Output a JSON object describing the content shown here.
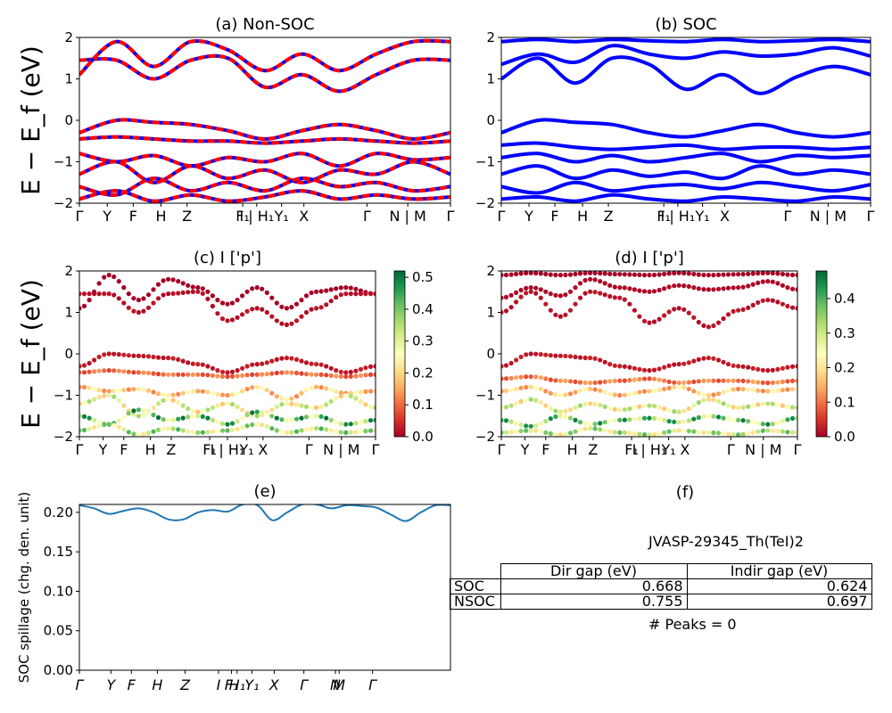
{
  "ylabel": "E − E_f (eV)",
  "colors": {
    "nonsoc_a": "#ff0000",
    "nonsoc_b": "#0000ff",
    "soc": "#0000ff",
    "spillage": "#1f77b4"
  },
  "chart_data": [
    {
      "id": "a",
      "type": "line",
      "title": "(a) Non-SOC",
      "ylim": [
        -2,
        2
      ],
      "yticks": [
        -2,
        -1,
        0,
        1,
        2
      ],
      "xticks": [
        "Γ",
        "Y",
        "F",
        "H",
        "Z",
        "F₁",
        "I | H₁",
        "Y₁",
        "X",
        "Γ",
        "N | M",
        "Γ"
      ],
      "band_style": "red/blue dashed, thick",
      "bands": [
        {
          "x": [
            0,
            0.1,
            0.2,
            0.3,
            0.4,
            0.5,
            0.6,
            0.7,
            0.8,
            0.9,
            1
          ],
          "y": [
            1.45,
            1.45,
            1.0,
            1.45,
            1.5,
            0.8,
            1.1,
            0.7,
            1.1,
            1.45,
            1.45
          ]
        },
        {
          "x": [
            0,
            0.1,
            0.2,
            0.3,
            0.4,
            0.5,
            0.6,
            0.7,
            0.8,
            0.9,
            1
          ],
          "y": [
            1.1,
            1.9,
            1.3,
            1.9,
            1.7,
            1.2,
            1.6,
            1.2,
            1.6,
            1.9,
            1.9
          ]
        },
        {
          "x": [
            0,
            0.1,
            0.2,
            0.3,
            0.4,
            0.5,
            0.6,
            0.7,
            0.8,
            0.9,
            1
          ],
          "y": [
            -0.3,
            0.0,
            -0.05,
            -0.1,
            -0.25,
            -0.45,
            -0.25,
            -0.1,
            -0.25,
            -0.45,
            -0.3
          ]
        },
        {
          "x": [
            0,
            0.1,
            0.2,
            0.3,
            0.4,
            0.5,
            0.6,
            0.7,
            0.8,
            0.9,
            1
          ],
          "y": [
            -0.45,
            -0.4,
            -0.45,
            -0.5,
            -0.5,
            -0.55,
            -0.5,
            -0.45,
            -0.5,
            -0.55,
            -0.5
          ]
        },
        {
          "x": [
            0,
            0.1,
            0.2,
            0.3,
            0.4,
            0.5,
            0.6,
            0.7,
            0.8,
            0.9,
            1
          ],
          "y": [
            -0.8,
            -1.0,
            -0.85,
            -1.1,
            -0.9,
            -1.0,
            -0.8,
            -1.1,
            -0.8,
            -0.95,
            -0.9
          ]
        },
        {
          "x": [
            0,
            0.1,
            0.2,
            0.3,
            0.4,
            0.5,
            0.6,
            0.7,
            0.8,
            0.9,
            1
          ],
          "y": [
            -1.3,
            -1.0,
            -1.5,
            -1.1,
            -1.4,
            -1.2,
            -1.5,
            -1.2,
            -1.3,
            -1.0,
            -1.3
          ]
        },
        {
          "x": [
            0,
            0.1,
            0.2,
            0.3,
            0.4,
            0.5,
            0.6,
            0.7,
            0.8,
            0.9,
            1
          ],
          "y": [
            -1.6,
            -1.8,
            -1.4,
            -1.7,
            -1.5,
            -1.7,
            -1.4,
            -1.6,
            -1.5,
            -1.7,
            -1.6
          ]
        },
        {
          "x": [
            0,
            0.1,
            0.2,
            0.3,
            0.4,
            0.5,
            0.6,
            0.7,
            0.8,
            0.9,
            1
          ],
          "y": [
            -1.9,
            -1.7,
            -1.95,
            -1.8,
            -1.95,
            -1.85,
            -1.7,
            -1.9,
            -1.8,
            -1.9,
            -1.85
          ]
        }
      ]
    },
    {
      "id": "b",
      "type": "line",
      "title": "(b) SOC",
      "ylim": [
        -2,
        2
      ],
      "yticks": [
        -2,
        -1,
        0,
        1,
        2
      ],
      "xticks": [
        "Γ",
        "Y",
        "F",
        "H",
        "Z",
        "F₁",
        "I | H₁",
        "Y₁",
        "X",
        "Γ",
        "N | M",
        "Γ"
      ],
      "band_style": "solid blue, thick",
      "bands": [
        {
          "x": [
            0,
            0.1,
            0.2,
            0.3,
            0.4,
            0.5,
            0.6,
            0.7,
            0.8,
            0.9,
            1
          ],
          "y": [
            1.9,
            1.95,
            1.9,
            1.95,
            1.92,
            1.9,
            1.95,
            1.9,
            1.92,
            1.95,
            1.9
          ]
        },
        {
          "x": [
            0,
            0.1,
            0.2,
            0.3,
            0.4,
            0.5,
            0.6,
            0.7,
            0.8,
            0.9,
            1
          ],
          "y": [
            1.35,
            1.6,
            1.4,
            1.8,
            1.6,
            1.5,
            1.65,
            1.55,
            1.6,
            1.75,
            1.55
          ]
        },
        {
          "x": [
            0,
            0.1,
            0.2,
            0.3,
            0.4,
            0.5,
            0.6,
            0.7,
            0.8,
            0.9,
            1
          ],
          "y": [
            1.0,
            1.5,
            0.9,
            1.5,
            1.35,
            0.75,
            1.1,
            0.65,
            1.05,
            1.3,
            1.1
          ]
        },
        {
          "x": [
            0,
            0.1,
            0.2,
            0.3,
            0.4,
            0.5,
            0.6,
            0.7,
            0.8,
            0.9,
            1
          ],
          "y": [
            -0.3,
            0.0,
            -0.05,
            -0.1,
            -0.3,
            -0.4,
            -0.25,
            -0.1,
            -0.3,
            -0.4,
            -0.3
          ]
        },
        {
          "x": [
            0,
            0.1,
            0.2,
            0.3,
            0.4,
            0.5,
            0.6,
            0.7,
            0.8,
            0.9,
            1
          ],
          "y": [
            -0.6,
            -0.55,
            -0.65,
            -0.7,
            -0.65,
            -0.6,
            -0.7,
            -0.65,
            -0.65,
            -0.7,
            -0.65
          ]
        },
        {
          "x": [
            0,
            0.1,
            0.2,
            0.3,
            0.4,
            0.5,
            0.6,
            0.7,
            0.8,
            0.9,
            1
          ],
          "y": [
            -0.9,
            -0.8,
            -1.0,
            -0.85,
            -1.0,
            -0.9,
            -0.8,
            -1.0,
            -0.85,
            -0.9,
            -0.85
          ]
        },
        {
          "x": [
            0,
            0.1,
            0.2,
            0.3,
            0.4,
            0.5,
            0.6,
            0.7,
            0.8,
            0.9,
            1
          ],
          "y": [
            -1.3,
            -1.1,
            -1.4,
            -1.2,
            -1.35,
            -1.25,
            -1.4,
            -1.1,
            -1.3,
            -1.2,
            -1.3
          ]
        },
        {
          "x": [
            0,
            0.1,
            0.2,
            0.3,
            0.4,
            0.5,
            0.6,
            0.7,
            0.8,
            0.9,
            1
          ],
          "y": [
            -1.6,
            -1.75,
            -1.5,
            -1.7,
            -1.6,
            -1.55,
            -1.65,
            -1.5,
            -1.6,
            -1.7,
            -1.55
          ]
        },
        {
          "x": [
            0,
            0.1,
            0.2,
            0.3,
            0.4,
            0.5,
            0.6,
            0.7,
            0.8,
            0.9,
            1
          ],
          "y": [
            -1.9,
            -1.85,
            -1.95,
            -1.8,
            -1.9,
            -1.95,
            -1.85,
            -1.9,
            -1.95,
            -1.85,
            -1.9
          ]
        }
      ]
    },
    {
      "id": "c",
      "type": "scatter",
      "title": "(c)  I ['p']",
      "ylim": [
        -2,
        2
      ],
      "yticks": [
        -2,
        -1,
        0,
        1,
        2
      ],
      "xticks": [
        "Γ",
        "Y",
        "F",
        "H",
        "Z",
        "F₁",
        "I | H₁",
        "Y₁",
        "X",
        "Γ",
        "N | M",
        "Γ"
      ],
      "colorbar_ticks": [
        0.0,
        0.1,
        0.2,
        0.3,
        0.4,
        0.5
      ],
      "colorbar_max": 0.52,
      "bands": [
        {
          "y": [
            1.1,
            1.9,
            1.3,
            1.8,
            1.6,
            1.2,
            1.6,
            1.1,
            1.5,
            1.6,
            1.45
          ],
          "w": 0.0
        },
        {
          "y": [
            1.45,
            1.45,
            1.0,
            1.45,
            1.5,
            0.8,
            1.1,
            0.7,
            1.1,
            1.45,
            1.45
          ],
          "w": 0.02
        },
        {
          "y": [
            -0.3,
            0.0,
            -0.05,
            -0.1,
            -0.25,
            -0.45,
            -0.25,
            -0.1,
            -0.25,
            -0.45,
            -0.3
          ],
          "w": 0.03
        },
        {
          "y": [
            -0.45,
            -0.4,
            -0.45,
            -0.5,
            -0.5,
            -0.55,
            -0.5,
            -0.45,
            -0.5,
            -0.55,
            -0.5
          ],
          "w": 0.12
        },
        {
          "y": [
            -0.8,
            -0.9,
            -0.85,
            -1.0,
            -0.9,
            -1.0,
            -0.8,
            -1.1,
            -0.8,
            -0.95,
            -0.9
          ],
          "w": 0.22
        },
        {
          "y": [
            -1.2,
            -1.0,
            -1.5,
            -1.1,
            -1.4,
            -1.2,
            -1.5,
            -1.2,
            -1.3,
            -1.0,
            -1.3
          ],
          "w": 0.32
        },
        {
          "y": [
            -1.5,
            -1.7,
            -1.35,
            -1.6,
            -1.5,
            -1.7,
            -1.4,
            -1.6,
            -1.5,
            -1.7,
            -1.6
          ],
          "w": 0.45
        },
        {
          "y": [
            -1.85,
            -1.7,
            -1.95,
            -1.8,
            -1.9,
            -1.85,
            -1.7,
            -1.9,
            -1.8,
            -1.9,
            -1.85
          ],
          "w": 0.38
        }
      ]
    },
    {
      "id": "d",
      "type": "scatter",
      "title": "(d) I ['p']",
      "ylim": [
        -2,
        2
      ],
      "yticks": [
        -2,
        -1,
        0,
        1,
        2
      ],
      "xticks": [
        "Γ",
        "Y",
        "F",
        "H",
        "Z",
        "F₁",
        "I | H₁",
        "Y₁",
        "X",
        "Γ",
        "N | M",
        "Γ"
      ],
      "colorbar_ticks": [
        0.0,
        0.1,
        0.2,
        0.3,
        0.4
      ],
      "colorbar_max": 0.48,
      "bands": [
        {
          "y": [
            1.9,
            1.95,
            1.9,
            1.95,
            1.92,
            1.9,
            1.95,
            1.9,
            1.92,
            1.95,
            1.9
          ],
          "w": 0.0
        },
        {
          "y": [
            1.35,
            1.6,
            1.4,
            1.8,
            1.6,
            1.5,
            1.65,
            1.55,
            1.6,
            1.75,
            1.55
          ],
          "w": 0.01
        },
        {
          "y": [
            1.0,
            1.5,
            0.9,
            1.5,
            1.35,
            0.75,
            1.1,
            0.65,
            1.05,
            1.3,
            1.1
          ],
          "w": 0.02
        },
        {
          "y": [
            -0.3,
            0.0,
            -0.05,
            -0.1,
            -0.3,
            -0.4,
            -0.25,
            -0.1,
            -0.3,
            -0.4,
            -0.3
          ],
          "w": 0.03
        },
        {
          "y": [
            -0.6,
            -0.55,
            -0.65,
            -0.7,
            -0.65,
            -0.6,
            -0.7,
            -0.65,
            -0.65,
            -0.7,
            -0.65
          ],
          "w": 0.12
        },
        {
          "y": [
            -0.9,
            -0.8,
            -1.0,
            -0.85,
            -1.0,
            -0.9,
            -0.8,
            -1.0,
            -0.85,
            -0.9,
            -0.85
          ],
          "w": 0.2
        },
        {
          "y": [
            -1.3,
            -1.1,
            -1.4,
            -1.2,
            -1.35,
            -1.25,
            -1.4,
            -1.1,
            -1.3,
            -1.2,
            -1.3
          ],
          "w": 0.3
        },
        {
          "y": [
            -1.6,
            -1.75,
            -1.5,
            -1.7,
            -1.6,
            -1.55,
            -1.65,
            -1.5,
            -1.6,
            -1.7,
            -1.55
          ],
          "w": 0.4
        },
        {
          "y": [
            -1.9,
            -1.85,
            -1.95,
            -1.8,
            -1.9,
            -1.95,
            -1.85,
            -1.9,
            -1.95,
            -1.85,
            -1.9
          ],
          "w": 0.34
        }
      ]
    },
    {
      "id": "e",
      "type": "line",
      "title": "(e)",
      "ylabel": "SOC spillage (chg. den. unit)",
      "ylim": [
        0.0,
        0.21
      ],
      "yticks": [
        0.0,
        0.05,
        0.1,
        0.15,
        0.2
      ],
      "ytick_labels": [
        "0.00",
        "0.05",
        "0.10",
        "0.15",
        "0.20"
      ],
      "xticks": [
        "Γ",
        "Y",
        "F",
        "H",
        "Z",
        "I",
        "F₁",
        "H₁",
        "Y₁",
        "X",
        "Γ",
        "N",
        "M",
        "Γ"
      ],
      "x": [
        0,
        0.04,
        0.08,
        0.12,
        0.16,
        0.2,
        0.24,
        0.28,
        0.32,
        0.36,
        0.4,
        0.44,
        0.48,
        0.52,
        0.56,
        0.6,
        0.64,
        0.68,
        0.72,
        0.76,
        0.8,
        0.84,
        0.88,
        0.92,
        0.96,
        1.0
      ],
      "y": [
        0.209,
        0.205,
        0.198,
        0.202,
        0.205,
        0.2,
        0.191,
        0.191,
        0.2,
        0.203,
        0.201,
        0.21,
        0.209,
        0.19,
        0.2,
        0.21,
        0.21,
        0.205,
        0.209,
        0.208,
        0.206,
        0.197,
        0.189,
        0.2,
        0.209,
        0.209
      ]
    }
  ],
  "panel_f": {
    "title": "(f)",
    "material": "JVASP-29345_Th(TeI)2",
    "headers": [
      "Dir gap (eV)",
      "Indir gap (eV)"
    ],
    "rows": [
      {
        "label": "SOC",
        "dir": "0.668",
        "indir": "0.624"
      },
      {
        "label": "NSOC",
        "dir": "0.755",
        "indir": "0.697"
      }
    ],
    "peaks": "# Peaks = 0"
  }
}
